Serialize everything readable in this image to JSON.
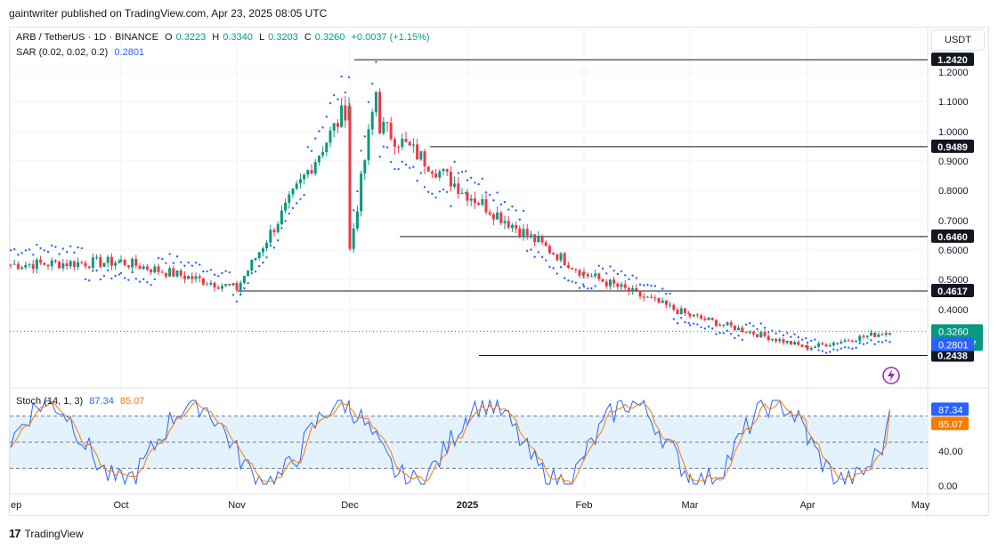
{
  "header": {
    "published": "gaintwriter published on TradingView.com, Apr 23, 2025 08:05 UTC"
  },
  "legend": {
    "symbol": "ARB / TetherUS · 1D · BINANCE",
    "o_label": "O",
    "o": "0.3223",
    "h_label": "H",
    "h": "0.3340",
    "l_label": "L",
    "l": "0.3203",
    "c_label": "C",
    "c": "0.3260",
    "change": "+0.0037 (+1.15%)",
    "sar_label": "SAR (0.02, 0.02, 0.2)",
    "sar_value": "0.2801",
    "stoch_label": "Stoch (14, 1, 3)",
    "stoch_k": "87.34",
    "stoch_d": "85.07"
  },
  "currency_button": "USDT",
  "footer": {
    "brand": "TradingView"
  },
  "countdown": "15:54:47",
  "colors": {
    "up": "#089981",
    "down": "#f23645",
    "sar": "#2962ff",
    "k": "#2962ff",
    "d": "#f57c00",
    "band": "#e3f2fd"
  },
  "chart_data": [
    {
      "type": "candlestick",
      "symbol": "ARB / TetherUS",
      "interval": "1D",
      "x_ticks": [
        "ep",
        "Oct",
        "Nov",
        "Dec",
        "2025",
        "Feb",
        "Mar",
        "Apr",
        "May"
      ],
      "y_ticks": [
        "1.2000",
        "1.1000",
        "1.0000",
        "0.9000",
        "0.8000",
        "0.7000",
        "0.6000",
        "0.5000",
        "0.4000"
      ],
      "ylim": [
        0.21,
        1.31
      ],
      "horizontal_levels": [
        "1.2420",
        "0.9489",
        "0.6460",
        "0.4617",
        "0.2438"
      ],
      "price_labels": {
        "last": "0.3260",
        "sar": "0.2801"
      },
      "close_path_months": [
        {
          "m": "Sep",
          "v": 0.55
        },
        {
          "m": "Oct",
          "v": 0.56
        },
        {
          "m": "Nov",
          "v": 0.47
        },
        {
          "m": "Dec",
          "v": 1.1
        },
        {
          "m": "2025",
          "v": 0.79
        },
        {
          "m": "Feb",
          "v": 0.52
        },
        {
          "m": "Mar",
          "v": 0.38
        },
        {
          "m": "Apr",
          "v": 0.27
        },
        {
          "m": "Apr 23",
          "v": 0.326
        }
      ]
    },
    {
      "type": "line",
      "name": "Stoch (14, 1, 3)",
      "y_ticks": [
        "40.00",
        "0.00"
      ],
      "levels": [
        80,
        50,
        20
      ],
      "latest": {
        "k": "87.34",
        "d": "85.07"
      }
    }
  ]
}
